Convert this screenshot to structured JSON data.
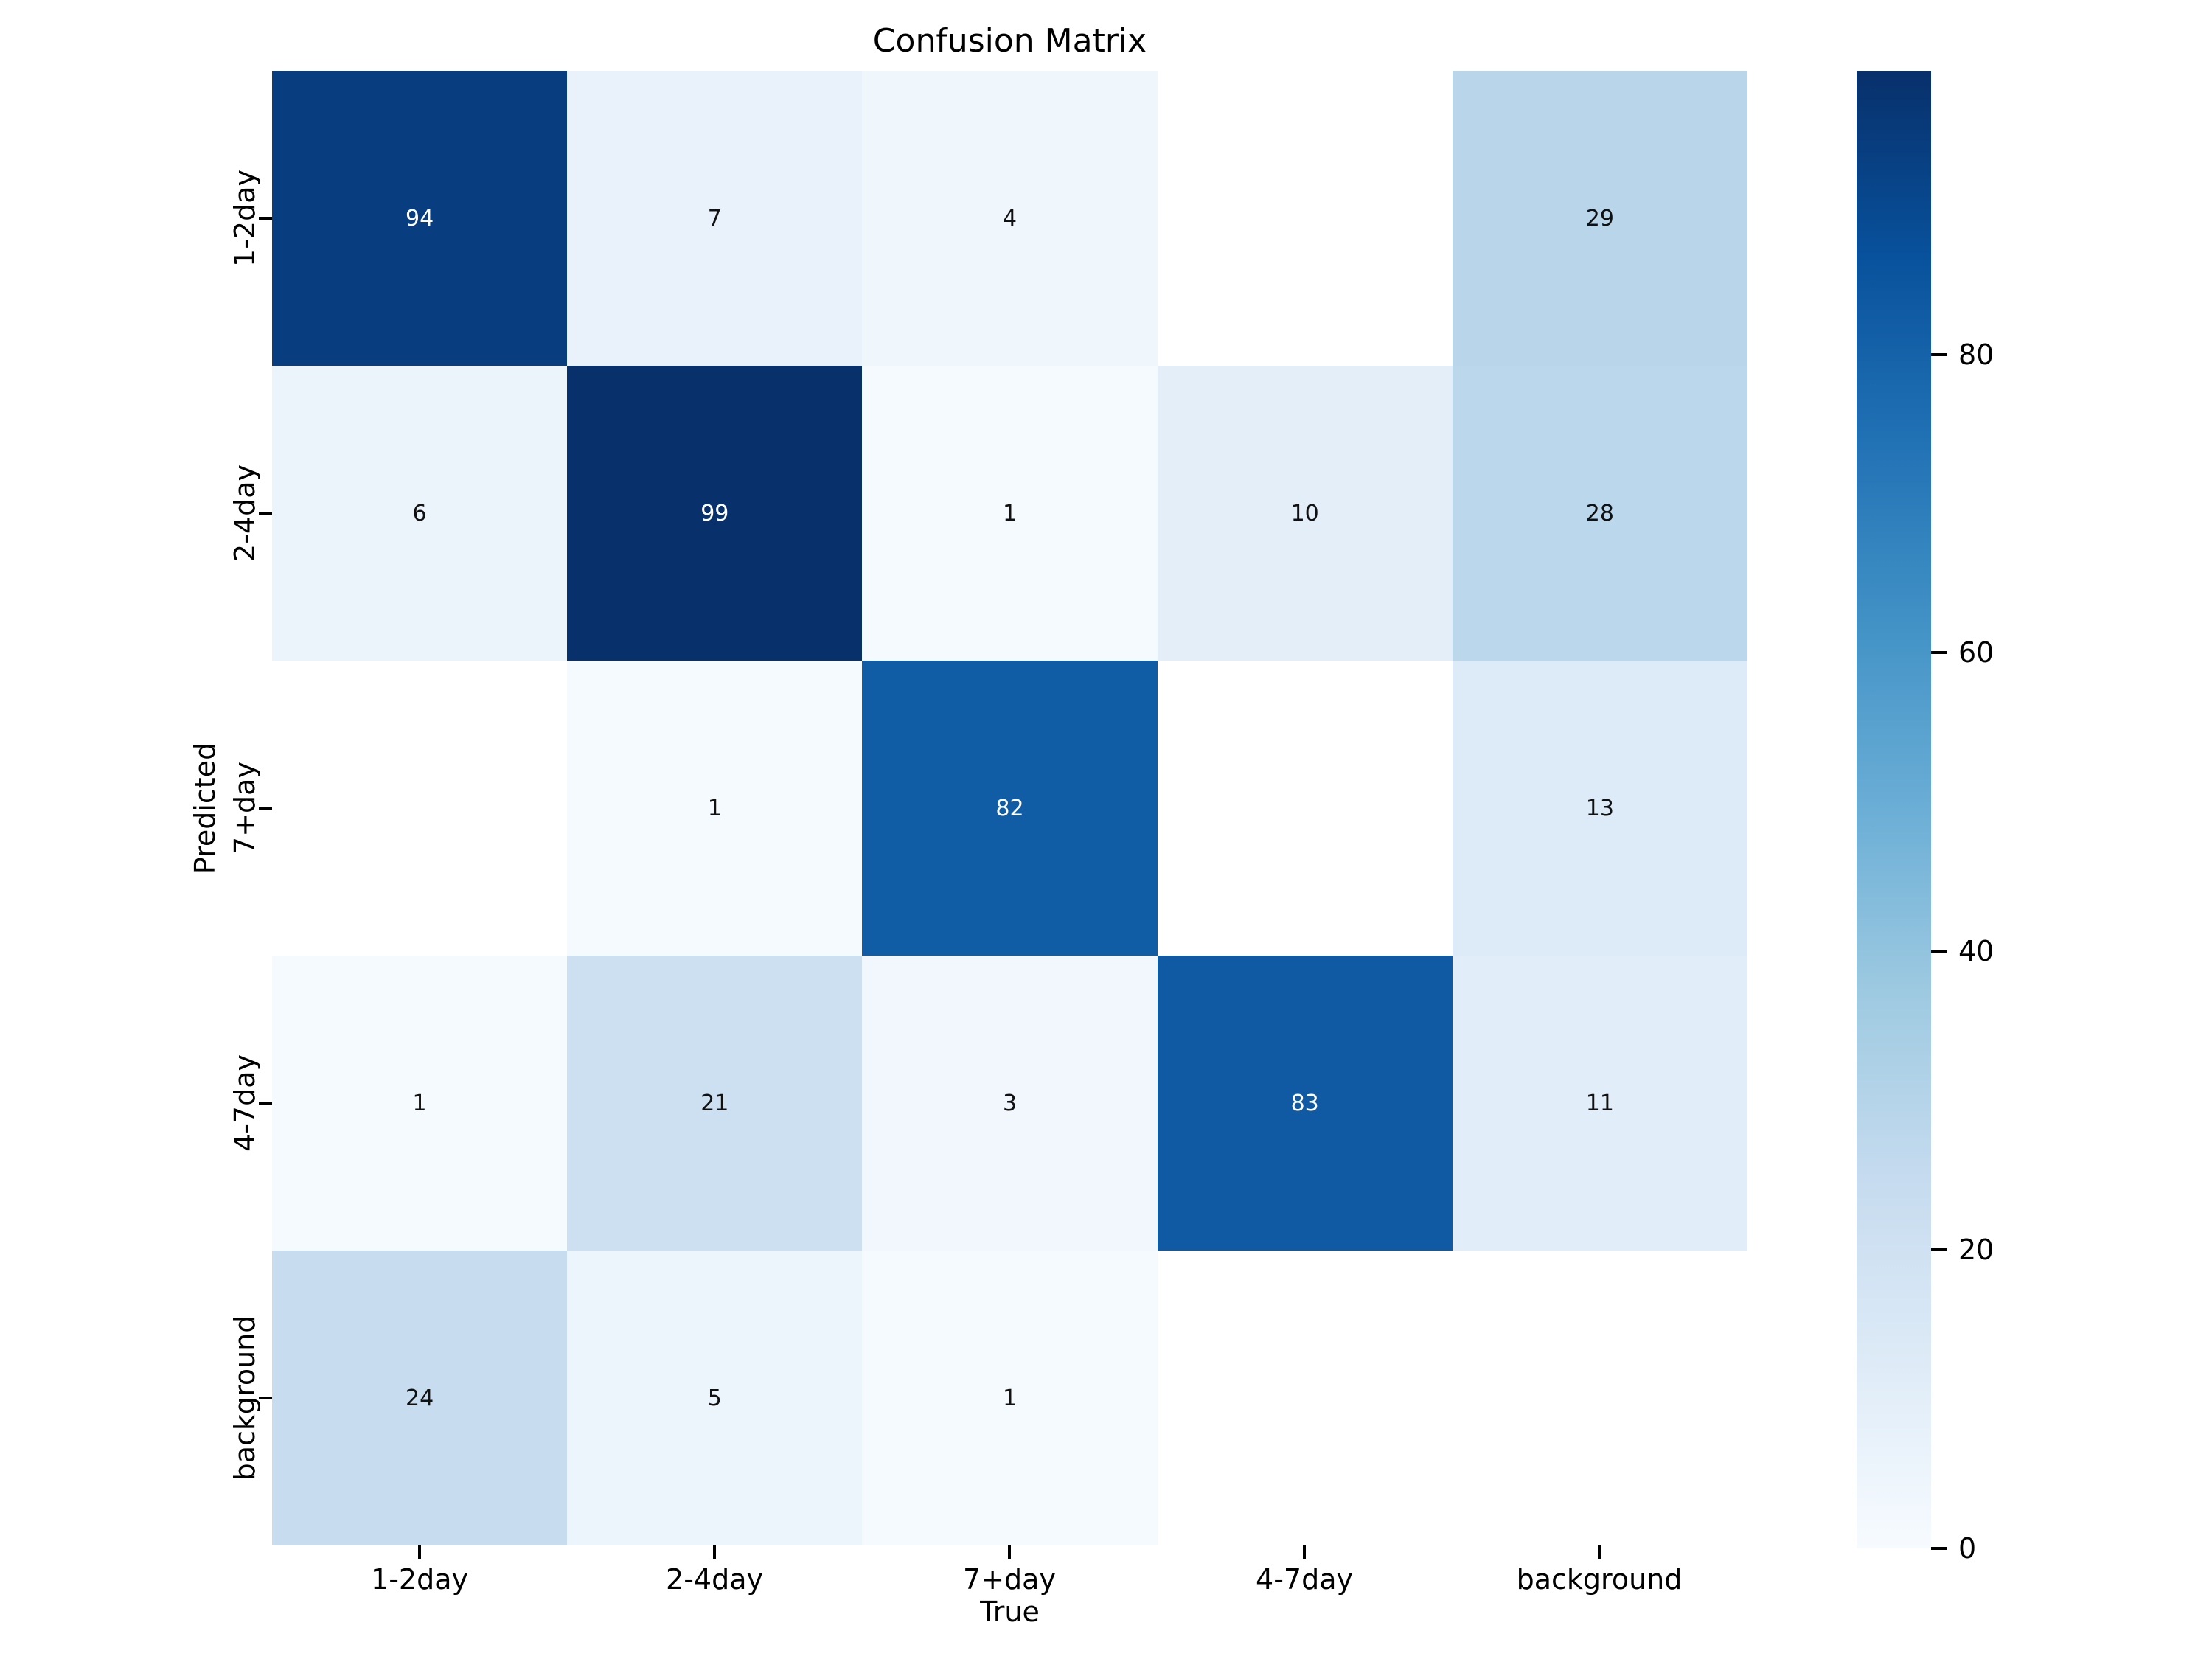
{
  "title": "Confusion Matrix",
  "axes": {
    "x_label": "True",
    "y_label": "Predicted",
    "x_ticks": [
      "1-2day",
      "2-4day",
      "7+day",
      "4-7day",
      "background"
    ],
    "y_ticks": [
      "1-2day",
      "2-4day",
      "7+day",
      "4-7day",
      "background"
    ]
  },
  "colorbar": {
    "ticks": [
      0,
      20,
      40,
      60,
      80
    ],
    "vmin": 0,
    "vmax": 99,
    "colormap": "Blues",
    "gradient_stops": [
      "#F7FBFF",
      "#DEEBF7",
      "#C6DBEF",
      "#9ECAE1",
      "#6BAED6",
      "#4292C6",
      "#2171B5",
      "#08519C",
      "#08306B"
    ]
  },
  "chart_data": {
    "type": "heatmap",
    "title": "Confusion Matrix",
    "xlabel": "True",
    "ylabel": "Predicted",
    "x_categories": [
      "1-2day",
      "2-4day",
      "7+day",
      "4-7day",
      "background"
    ],
    "y_categories": [
      "1-2day",
      "2-4day",
      "7+day",
      "4-7day",
      "background"
    ],
    "matrix": [
      [
        94,
        7,
        4,
        null,
        29
      ],
      [
        6,
        99,
        1,
        10,
        28
      ],
      [
        null,
        1,
        82,
        null,
        13
      ],
      [
        1,
        21,
        3,
        83,
        11
      ],
      [
        24,
        5,
        1,
        null,
        null
      ]
    ],
    "vmin": 0,
    "vmax": 99,
    "colormap": "Blues",
    "grid": false,
    "legend_position": "right-colorbar"
  },
  "cells": [
    {
      "value": "94",
      "bg": "#083D7F",
      "fg": "#FFFFFF"
    },
    {
      "value": "7",
      "bg": "#E9F2FA",
      "fg": "#111111"
    },
    {
      "value": "4",
      "bg": "#EFF6FC",
      "fg": "#111111"
    },
    {
      "value": "",
      "bg": "#FFFFFF",
      "fg": "#111111"
    },
    {
      "value": "29",
      "bg": "#B8D5EA",
      "fg": "#111111"
    },
    {
      "value": "6",
      "bg": "#EBF3FB",
      "fg": "#111111"
    },
    {
      "value": "99",
      "bg": "#08306B",
      "fg": "#FFFFFF"
    },
    {
      "value": "1",
      "bg": "#F5FAFE",
      "fg": "#111111"
    },
    {
      "value": "10",
      "bg": "#E3EEF9",
      "fg": "#111111"
    },
    {
      "value": "28",
      "bg": "#BBD7EB",
      "fg": "#111111"
    },
    {
      "value": "",
      "bg": "#FFFFFF",
      "fg": "#111111"
    },
    {
      "value": "1",
      "bg": "#F5FAFE",
      "fg": "#111111"
    },
    {
      "value": "82",
      "bg": "#115DA5",
      "fg": "#FFFFFF"
    },
    {
      "value": "",
      "bg": "#FFFFFF",
      "fg": "#111111"
    },
    {
      "value": "13",
      "bg": "#DDEAF7",
      "fg": "#111111"
    },
    {
      "value": "1",
      "bg": "#F5FAFE",
      "fg": "#111111"
    },
    {
      "value": "21",
      "bg": "#CDE0F1",
      "fg": "#111111"
    },
    {
      "value": "3",
      "bg": "#F1F7FD",
      "fg": "#111111"
    },
    {
      "value": "83",
      "bg": "#0F5AA3",
      "fg": "#FFFFFF"
    },
    {
      "value": "11",
      "bg": "#E1EDF8",
      "fg": "#111111"
    },
    {
      "value": "24",
      "bg": "#C7DCEF",
      "fg": "#111111"
    },
    {
      "value": "5",
      "bg": "#EDF5FC",
      "fg": "#111111"
    },
    {
      "value": "1",
      "bg": "#F5FAFE",
      "fg": "#111111"
    },
    {
      "value": "",
      "bg": "#FFFFFF",
      "fg": "#111111"
    },
    {
      "value": "",
      "bg": "#FFFFFF",
      "fg": "#111111"
    }
  ]
}
